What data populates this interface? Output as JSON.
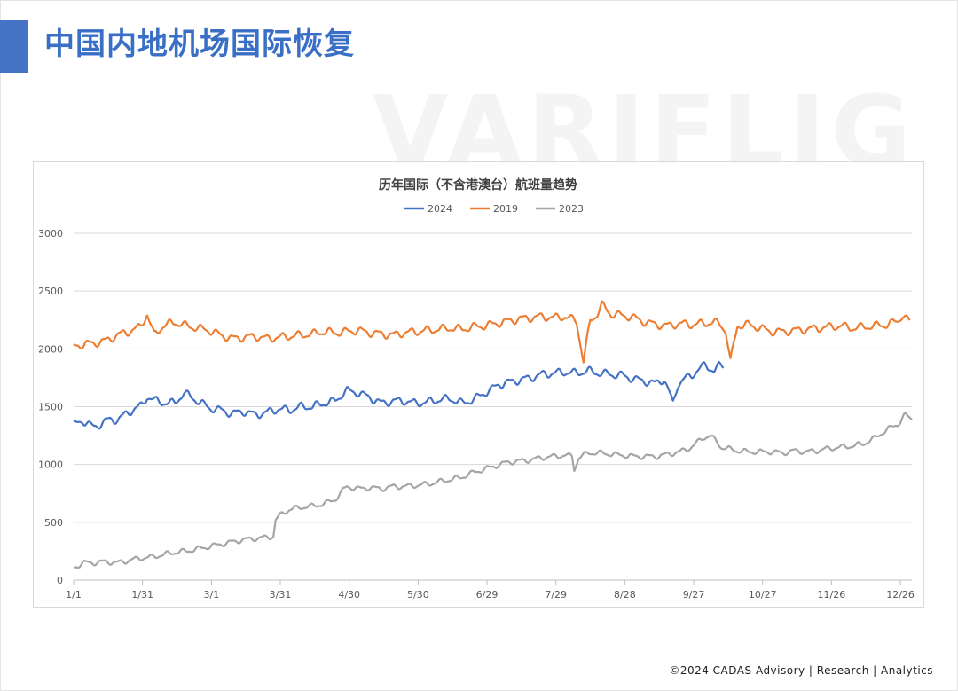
{
  "page": {
    "title": "中国内地机场国际恢复",
    "watermark": "VARIFLIGHT",
    "footer": "©2024 CADAS Advisory | Research | Analytics"
  },
  "colors": {
    "accent": "#4472c4",
    "title": "#3a6fc6"
  },
  "chart_data": {
    "type": "line",
    "title": "历年国际（不含港澳台）航班量趋势",
    "xlabel": "",
    "ylabel": "",
    "x_tick_labels": [
      "1/1",
      "1/31",
      "3/1",
      "3/31",
      "4/30",
      "5/30",
      "6/29",
      "7/29",
      "8/28",
      "9/27",
      "10/27",
      "11/26",
      "12/26"
    ],
    "x_tick_days": [
      1,
      31,
      61,
      91,
      121,
      151,
      181,
      211,
      241,
      271,
      301,
      331,
      361
    ],
    "xlim_days": [
      1,
      366
    ],
    "ylim": [
      0,
      3000
    ],
    "y_ticks": [
      0,
      500,
      1000,
      1500,
      2000,
      2500,
      3000
    ],
    "grid": true,
    "legend_position": "top-center",
    "series": [
      {
        "name": "2024",
        "color": "#4472c4",
        "points": [
          [
            1,
            1340
          ],
          [
            5,
            1380
          ],
          [
            10,
            1320
          ],
          [
            15,
            1380
          ],
          [
            20,
            1390
          ],
          [
            25,
            1450
          ],
          [
            28,
            1490
          ],
          [
            31,
            1510
          ],
          [
            33,
            1590
          ],
          [
            38,
            1540
          ],
          [
            45,
            1530
          ],
          [
            49,
            1620
          ],
          [
            55,
            1550
          ],
          [
            60,
            1490
          ],
          [
            65,
            1470
          ],
          [
            70,
            1440
          ],
          [
            75,
            1460
          ],
          [
            80,
            1430
          ],
          [
            85,
            1450
          ],
          [
            90,
            1480
          ],
          [
            95,
            1470
          ],
          [
            100,
            1500
          ],
          [
            105,
            1500
          ],
          [
            110,
            1530
          ],
          [
            115,
            1550
          ],
          [
            118,
            1610
          ],
          [
            120,
            1640
          ],
          [
            125,
            1620
          ],
          [
            130,
            1580
          ],
          [
            135,
            1530
          ],
          [
            140,
            1550
          ],
          [
            145,
            1550
          ],
          [
            150,
            1530
          ],
          [
            155,
            1540
          ],
          [
            160,
            1560
          ],
          [
            165,
            1570
          ],
          [
            170,
            1530
          ],
          [
            175,
            1560
          ],
          [
            180,
            1620
          ],
          [
            183,
            1650
          ],
          [
            186,
            1690
          ],
          [
            190,
            1710
          ],
          [
            195,
            1730
          ],
          [
            200,
            1750
          ],
          [
            205,
            1780
          ],
          [
            210,
            1790
          ],
          [
            215,
            1800
          ],
          [
            220,
            1790
          ],
          [
            225,
            1810
          ],
          [
            230,
            1790
          ],
          [
            235,
            1780
          ],
          [
            240,
            1770
          ],
          [
            245,
            1740
          ],
          [
            250,
            1720
          ],
          [
            254,
            1700
          ],
          [
            258,
            1740
          ],
          [
            260,
            1640
          ],
          [
            262,
            1530
          ],
          [
            264,
            1690
          ],
          [
            267,
            1740
          ],
          [
            270,
            1770
          ],
          [
            273,
            1820
          ],
          [
            276,
            1860
          ],
          [
            280,
            1810
          ],
          [
            282,
            1850
          ],
          [
            284,
            1855
          ]
        ]
      },
      {
        "name": "2019",
        "color": "#ed7d31",
        "points": [
          [
            1,
            2020
          ],
          [
            5,
            2040
          ],
          [
            10,
            2050
          ],
          [
            15,
            2070
          ],
          [
            20,
            2120
          ],
          [
            25,
            2150
          ],
          [
            30,
            2190
          ],
          [
            33,
            2300
          ],
          [
            36,
            2120
          ],
          [
            40,
            2200
          ],
          [
            45,
            2230
          ],
          [
            50,
            2200
          ],
          [
            55,
            2180
          ],
          [
            60,
            2160
          ],
          [
            65,
            2120
          ],
          [
            70,
            2090
          ],
          [
            75,
            2100
          ],
          [
            80,
            2110
          ],
          [
            85,
            2090
          ],
          [
            90,
            2100
          ],
          [
            95,
            2110
          ],
          [
            100,
            2120
          ],
          [
            105,
            2130
          ],
          [
            110,
            2150
          ],
          [
            115,
            2140
          ],
          [
            120,
            2150
          ],
          [
            125,
            2160
          ],
          [
            130,
            2140
          ],
          [
            135,
            2130
          ],
          [
            140,
            2120
          ],
          [
            145,
            2140
          ],
          [
            150,
            2150
          ],
          [
            155,
            2160
          ],
          [
            160,
            2170
          ],
          [
            165,
            2180
          ],
          [
            170,
            2170
          ],
          [
            175,
            2190
          ],
          [
            180,
            2200
          ],
          [
            185,
            2220
          ],
          [
            190,
            2240
          ],
          [
            195,
            2260
          ],
          [
            200,
            2270
          ],
          [
            205,
            2280
          ],
          [
            210,
            2270
          ],
          [
            215,
            2280
          ],
          [
            220,
            2240
          ],
          [
            223,
            1890
          ],
          [
            226,
            2250
          ],
          [
            229,
            2300
          ],
          [
            231,
            2380
          ],
          [
            235,
            2300
          ],
          [
            240,
            2290
          ],
          [
            245,
            2270
          ],
          [
            250,
            2230
          ],
          [
            255,
            2210
          ],
          [
            260,
            2200
          ],
          [
            265,
            2220
          ],
          [
            270,
            2210
          ],
          [
            275,
            2220
          ],
          [
            280,
            2230
          ],
          [
            283,
            2210
          ],
          [
            285,
            2150
          ],
          [
            287,
            1890
          ],
          [
            290,
            2200
          ],
          [
            295,
            2210
          ],
          [
            300,
            2180
          ],
          [
            305,
            2150
          ],
          [
            310,
            2150
          ],
          [
            315,
            2160
          ],
          [
            320,
            2170
          ],
          [
            325,
            2180
          ],
          [
            330,
            2190
          ],
          [
            335,
            2200
          ],
          [
            340,
            2180
          ],
          [
            345,
            2190
          ],
          [
            350,
            2200
          ],
          [
            355,
            2210
          ],
          [
            360,
            2240
          ],
          [
            362,
            2300
          ],
          [
            365,
            2230
          ]
        ]
      },
      {
        "name": "2023",
        "color": "#a5a5a5",
        "points": [
          [
            1,
            105
          ],
          [
            5,
            150
          ],
          [
            10,
            150
          ],
          [
            15,
            160
          ],
          [
            20,
            150
          ],
          [
            25,
            170
          ],
          [
            30,
            190
          ],
          [
            35,
            200
          ],
          [
            40,
            220
          ],
          [
            45,
            240
          ],
          [
            50,
            250
          ],
          [
            55,
            270
          ],
          [
            60,
            290
          ],
          [
            65,
            310
          ],
          [
            70,
            330
          ],
          [
            75,
            350
          ],
          [
            80,
            360
          ],
          [
            85,
            370
          ],
          [
            88,
            380
          ],
          [
            89,
            520
          ],
          [
            92,
            580
          ],
          [
            95,
            610
          ],
          [
            100,
            630
          ],
          [
            105,
            640
          ],
          [
            110,
            660
          ],
          [
            115,
            700
          ],
          [
            118,
            770
          ],
          [
            120,
            810
          ],
          [
            125,
            790
          ],
          [
            130,
            800
          ],
          [
            135,
            790
          ],
          [
            140,
            810
          ],
          [
            145,
            810
          ],
          [
            150,
            820
          ],
          [
            155,
            830
          ],
          [
            160,
            850
          ],
          [
            165,
            870
          ],
          [
            170,
            890
          ],
          [
            175,
            930
          ],
          [
            180,
            960
          ],
          [
            185,
            990
          ],
          [
            190,
            1020
          ],
          [
            195,
            1030
          ],
          [
            200,
            1040
          ],
          [
            205,
            1060
          ],
          [
            210,
            1070
          ],
          [
            215,
            1080
          ],
          [
            218,
            1070
          ],
          [
            219,
            960
          ],
          [
            221,
            1060
          ],
          [
            225,
            1100
          ],
          [
            230,
            1100
          ],
          [
            235,
            1090
          ],
          [
            240,
            1080
          ],
          [
            245,
            1070
          ],
          [
            250,
            1070
          ],
          [
            255,
            1070
          ],
          [
            260,
            1090
          ],
          [
            265,
            1110
          ],
          [
            270,
            1150
          ],
          [
            275,
            1230
          ],
          [
            278,
            1250
          ],
          [
            281,
            1200
          ],
          [
            283,
            1150
          ],
          [
            285,
            1140
          ],
          [
            290,
            1120
          ],
          [
            295,
            1110
          ],
          [
            300,
            1110
          ],
          [
            305,
            1110
          ],
          [
            310,
            1100
          ],
          [
            315,
            1120
          ],
          [
            320,
            1110
          ],
          [
            325,
            1120
          ],
          [
            330,
            1140
          ],
          [
            335,
            1150
          ],
          [
            340,
            1160
          ],
          [
            345,
            1180
          ],
          [
            350,
            1230
          ],
          [
            355,
            1300
          ],
          [
            360,
            1350
          ],
          [
            363,
            1430
          ],
          [
            366,
            1390
          ]
        ]
      }
    ]
  }
}
